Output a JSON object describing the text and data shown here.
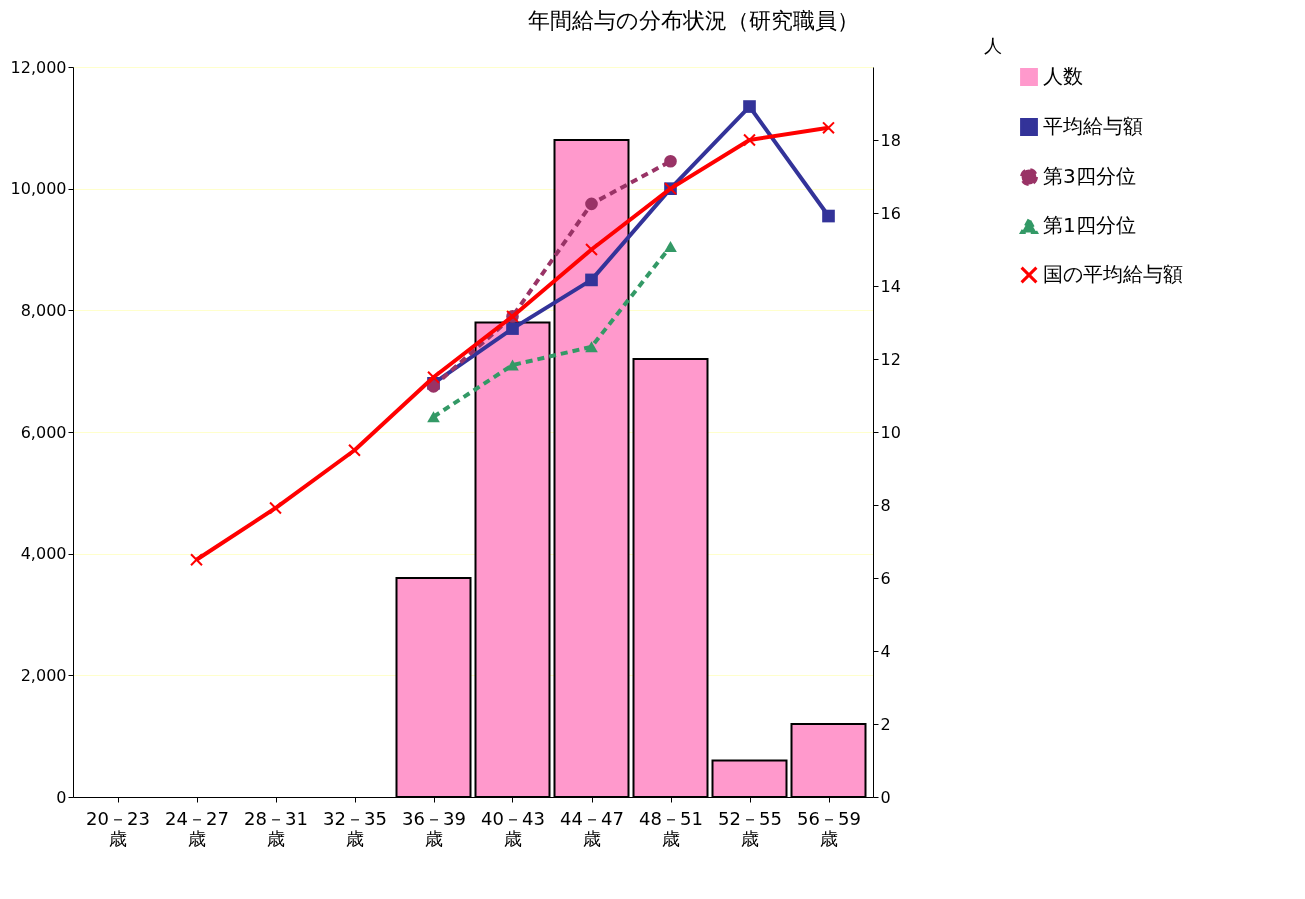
{
  "chart_data": {
    "type": "bar",
    "title": "年間給与の分布状況（研究職員）",
    "y2label": "人",
    "categories": [
      "20－23\n歳",
      "24－27\n歳",
      "28－31\n歳",
      "32－35\n歳",
      "36－39\n歳",
      "40－43\n歳",
      "44－47\n歳",
      "48－51\n歳",
      "52－55\n歳",
      "56－59\n歳"
    ],
    "series": [
      {
        "name": "人数",
        "axis": "y2",
        "color": "#ff99cc",
        "values": [
          null,
          null,
          null,
          null,
          6,
          13,
          18,
          12,
          1,
          2
        ]
      },
      {
        "name": "平均給与額",
        "type": "line",
        "color": "#333399",
        "marker": "square",
        "line_style": "solid",
        "values": [
          null,
          null,
          null,
          null,
          6800,
          7700,
          8500,
          10000,
          11350,
          9550
        ]
      },
      {
        "name": "第3四分位",
        "type": "line",
        "color": "#993366",
        "marker": "circle",
        "line_style": "dashed",
        "values": [
          null,
          null,
          null,
          null,
          6750,
          7900,
          9750,
          10450,
          null,
          null
        ]
      },
      {
        "name": "第1四分位",
        "type": "line",
        "color": "#339966",
        "marker": "triangle",
        "line_style": "dashed",
        "values": [
          null,
          null,
          null,
          null,
          6250,
          7100,
          7400,
          9050,
          null,
          null
        ]
      },
      {
        "name": "国の平均給与額",
        "type": "line",
        "color": "#ff0000",
        "marker": "cross",
        "line_style": "solid",
        "values": [
          null,
          3900,
          4750,
          5700,
          6900,
          7900,
          9000,
          10000,
          10800,
          11000
        ]
      }
    ],
    "ylim": [
      0,
      12000
    ],
    "yticks": [
      {
        "value": 0,
        "label": "0"
      },
      {
        "value": 2000,
        "label": "2,000"
      },
      {
        "value": 4000,
        "label": "4,000"
      },
      {
        "value": 6000,
        "label": "6,000"
      },
      {
        "value": 8000,
        "label": "8,000"
      },
      {
        "value": 10000,
        "label": "10,000"
      },
      {
        "value": 12000,
        "label": "12,000"
      }
    ],
    "y2lim": [
      0,
      20
    ],
    "y2ticks": [
      0,
      2,
      4,
      6,
      8,
      10,
      12,
      14,
      16,
      18
    ],
    "grid": "y",
    "legend": "right"
  }
}
